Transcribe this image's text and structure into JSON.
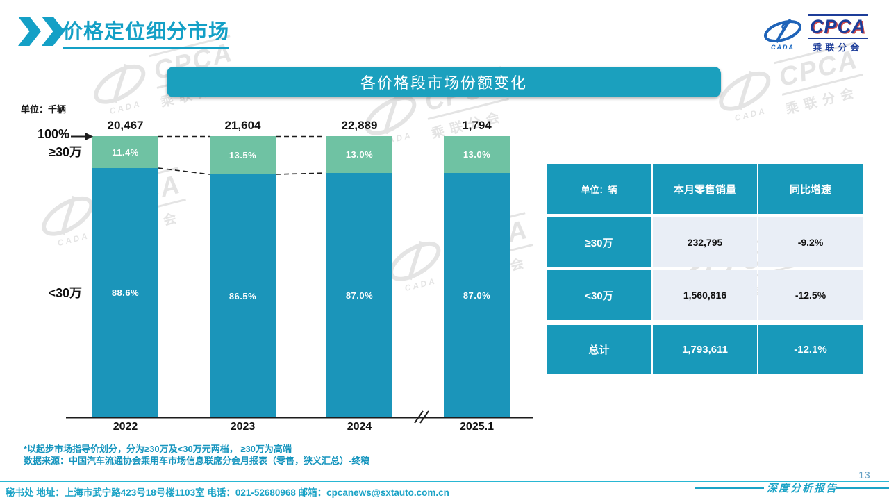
{
  "header": {
    "title": "价格定位细分市场",
    "logo": {
      "cpca": "CPCA",
      "cada": "CADA",
      "subtitle": "乘联分会"
    }
  },
  "banner": {
    "title": "各价格段市场份额变化"
  },
  "chart": {
    "unit_label": "单位：千辆",
    "axis_100_label": "100%",
    "high_label": "≥30万",
    "low_label": "<30万"
  },
  "chart_data": {
    "type": "bar",
    "stacked": true,
    "percent_axis": true,
    "title": "各价格段市场份额变化",
    "unit": "千辆",
    "categories": [
      "2022",
      "2023",
      "2024",
      "2025.1"
    ],
    "totals": [
      "20,467",
      "21,604",
      "22,889",
      "1,794"
    ],
    "series": [
      {
        "name": "≥30万",
        "values": [
          11.4,
          13.5,
          13.0,
          13.0
        ],
        "labels": [
          "11.4%",
          "13.5%",
          "13.0%",
          "13.0%"
        ],
        "color": "#6FC2A3"
      },
      {
        "name": "<30万",
        "values": [
          88.6,
          86.5,
          87.0,
          87.0
        ],
        "labels": [
          "88.6%",
          "86.5%",
          "87.0%",
          "87.0%"
        ],
        "color": "#1B95BA"
      }
    ],
    "connectors": [
      [
        0,
        1
      ],
      [
        1,
        2
      ]
    ],
    "axis_break_after_index": 2,
    "ylim": [
      0,
      100
    ]
  },
  "table": {
    "header": [
      "单位：辆",
      "本月零售销量",
      "同比增速"
    ],
    "rows": [
      {
        "label": "≥30万",
        "sales": "232,795",
        "growth": "-9.2%",
        "total": false
      },
      {
        "label": "<30万",
        "sales": "1,560,816",
        "growth": "-12.5%",
        "total": false
      },
      {
        "label": "总计",
        "sales": "1,793,611",
        "growth": "-12.1%",
        "total": true
      }
    ]
  },
  "footnotes": [
    "*以起步市场指导价划分，分为≥30万及<30万元两档， ≥30万为高端",
    "数据来源：中国汽车流通协会乘用车市场信息联席分会月报表（零售，狭义汇总）-终稿"
  ],
  "footer": {
    "contact": "秘书处  地址：上海市武宁路423号18号楼1103室  电话：021-52680968   邮箱：cpcanews@sxtauto.com.cn",
    "report_label": "深度分析报告",
    "page_number": "13"
  },
  "colors": {
    "accent": "#14A0C6",
    "banner": "#1BA0BE",
    "bar_teal": "#1B95BA",
    "bar_green": "#6FC2A3",
    "table_teal": "#1899BA",
    "table_light": "#E9EEF6",
    "footnote": "#1695BE",
    "page_number": "#64A0C4"
  }
}
